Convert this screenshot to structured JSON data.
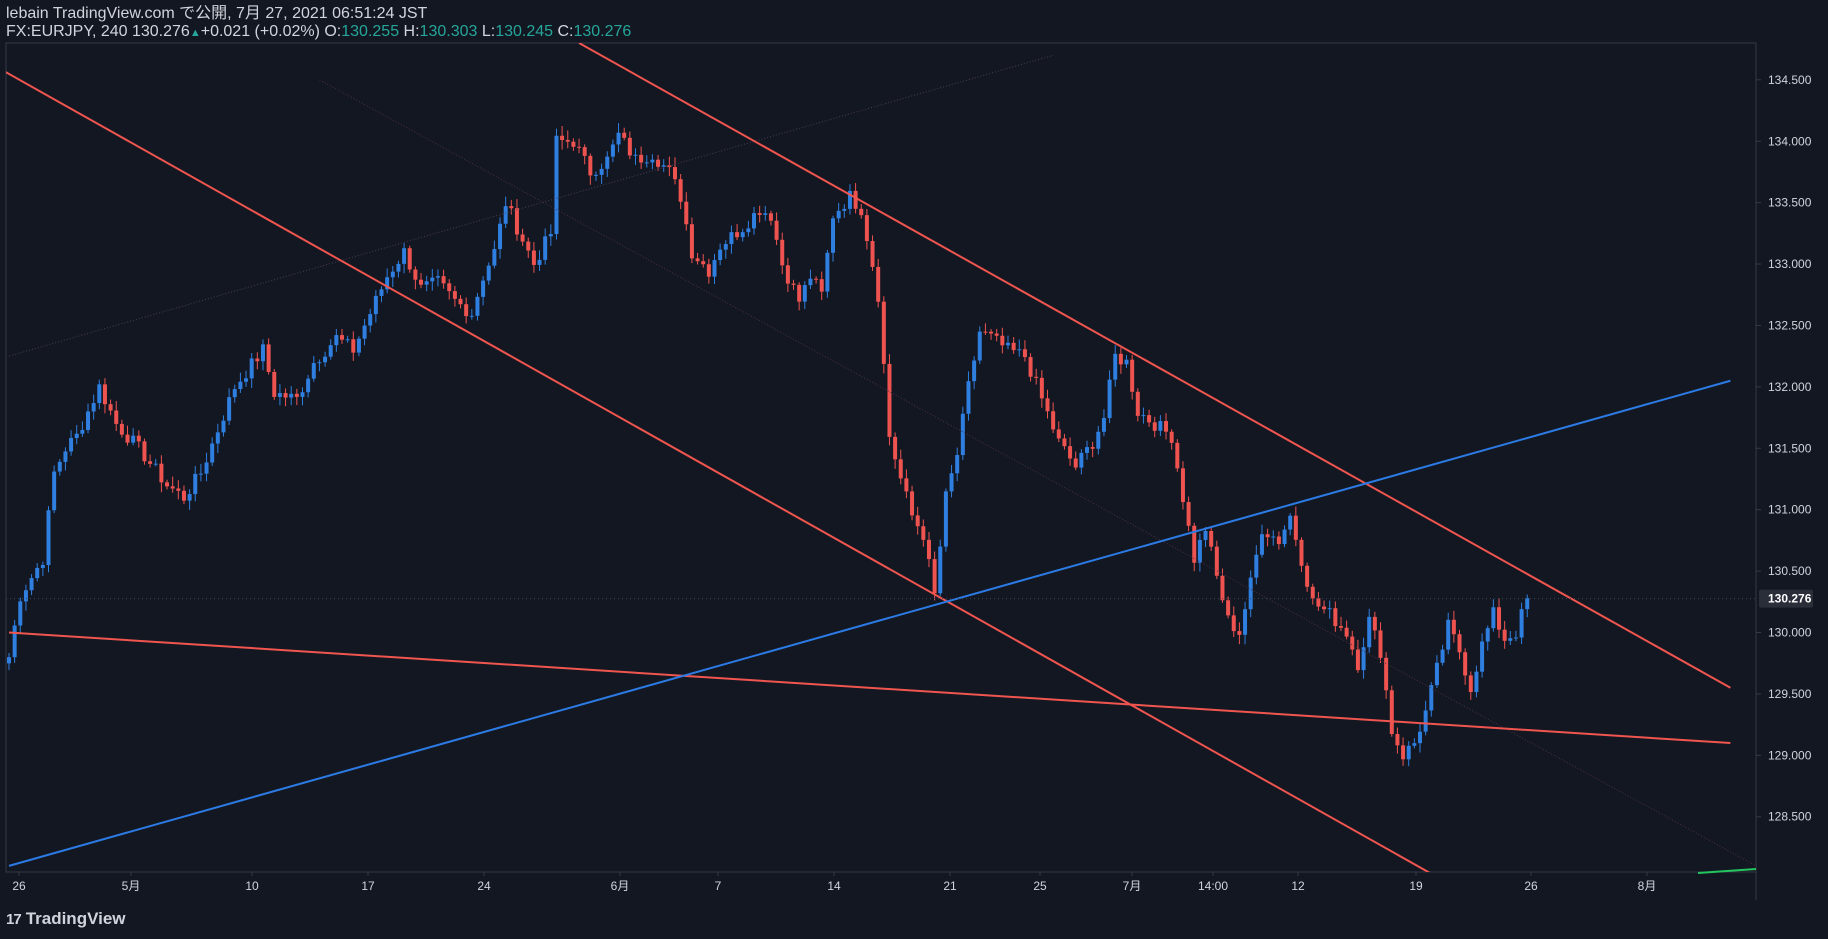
{
  "header": {
    "publish_line": "lebain TradingView.com で公開, 7月 27, 2021 06:51:24 JST",
    "symbol_prefix": "FX:EURJPY, 240 130.276",
    "change_arrow": "▲",
    "change_text": "+0.021 (+0.02%) O:",
    "open": "130.255",
    "h_label": "H:",
    "high": "130.303",
    "l_label": "L:",
    "low": "130.245",
    "c_label": "C:",
    "close": "130.276"
  },
  "footer": {
    "logo_mark": "17",
    "brand": "TradingView"
  },
  "colors": {
    "background": "#131722",
    "up": "#2f7fe0",
    "down": "#ef5350",
    "trend_red": "#f0554f",
    "trend_blue": "#2c7be5",
    "axis_text": "#d1d4dc",
    "grid_border": "#363a45",
    "green_stub": "#22c55e"
  },
  "chart_data": {
    "type": "candlestick",
    "symbol": "FX:EURJPY",
    "interval": "240",
    "ylim": [
      128.05,
      134.8
    ],
    "y_ticks": [
      "134.500",
      "134.000",
      "133.500",
      "133.000",
      "132.500",
      "132.000",
      "131.500",
      "131.000",
      "130.500",
      "130.000",
      "129.500",
      "129.000",
      "128.500"
    ],
    "x_ticks": [
      "26",
      "5月",
      "10",
      "17",
      "24",
      "6月",
      "7",
      "14",
      "21",
      "25",
      "7月",
      "14:00",
      "12",
      "19",
      "26",
      "8月"
    ],
    "last_price": "130.276",
    "anchors": [
      [
        0,
        129.8
      ],
      [
        2,
        130.3
      ],
      [
        4,
        130.45
      ],
      [
        6,
        130.6
      ],
      [
        8,
        131.3
      ],
      [
        10,
        131.5
      ],
      [
        12,
        131.6
      ],
      [
        16,
        132.0
      ],
      [
        19,
        131.7
      ],
      [
        23,
        131.5
      ],
      [
        28,
        131.2
      ],
      [
        31,
        131.1
      ],
      [
        34,
        131.3
      ],
      [
        40,
        132.0
      ],
      [
        45,
        132.3
      ],
      [
        47,
        131.95
      ],
      [
        51,
        131.9
      ],
      [
        54,
        132.2
      ],
      [
        58,
        132.4
      ],
      [
        61,
        132.3
      ],
      [
        63,
        132.5
      ],
      [
        67,
        132.9
      ],
      [
        70,
        133.1
      ],
      [
        73,
        132.8
      ],
      [
        76,
        132.85
      ],
      [
        79,
        132.7
      ],
      [
        82,
        132.6
      ],
      [
        84,
        132.9
      ],
      [
        86,
        133.1
      ],
      [
        88,
        133.5
      ],
      [
        90,
        133.3
      ],
      [
        93,
        133.0
      ],
      [
        96,
        133.25
      ],
      [
        97,
        134.0
      ],
      [
        100,
        134.0
      ],
      [
        103,
        133.75
      ],
      [
        106,
        133.85
      ],
      [
        108,
        134.05
      ],
      [
        111,
        133.85
      ],
      [
        114,
        133.9
      ],
      [
        117,
        133.75
      ],
      [
        119,
        133.55
      ],
      [
        121,
        133.1
      ],
      [
        124,
        132.95
      ],
      [
        126,
        133.15
      ],
      [
        130,
        133.3
      ],
      [
        133,
        133.45
      ],
      [
        135,
        133.4
      ],
      [
        137,
        133.0
      ],
      [
        140,
        132.7
      ],
      [
        142,
        132.9
      ],
      [
        144,
        132.75
      ],
      [
        146,
        133.4
      ],
      [
        149,
        133.55
      ],
      [
        151,
        133.45
      ],
      [
        153,
        133.0
      ],
      [
        154,
        132.75
      ],
      [
        156,
        131.6
      ],
      [
        158,
        131.25
      ],
      [
        160,
        130.95
      ],
      [
        162,
        130.8
      ],
      [
        164,
        130.3
      ],
      [
        166,
        131.1
      ],
      [
        168,
        131.45
      ],
      [
        170,
        132.0
      ],
      [
        172,
        132.45
      ],
      [
        174,
        132.4
      ],
      [
        177,
        132.3
      ],
      [
        180,
        132.25
      ],
      [
        183,
        131.9
      ],
      [
        186,
        131.55
      ],
      [
        189,
        131.35
      ],
      [
        192,
        131.55
      ],
      [
        194,
        131.75
      ],
      [
        196,
        132.25
      ],
      [
        198,
        132.2
      ],
      [
        200,
        131.8
      ],
      [
        203,
        131.7
      ],
      [
        206,
        131.6
      ],
      [
        208,
        131.1
      ],
      [
        210,
        130.6
      ],
      [
        212,
        130.85
      ],
      [
        214,
        130.45
      ],
      [
        216,
        130.1
      ],
      [
        218,
        130.0
      ],
      [
        220,
        130.4
      ],
      [
        222,
        130.85
      ],
      [
        225,
        130.75
      ],
      [
        227,
        130.95
      ],
      [
        229,
        130.6
      ],
      [
        231,
        130.25
      ],
      [
        234,
        130.15
      ],
      [
        237,
        130.0
      ],
      [
        239,
        129.75
      ],
      [
        241,
        130.1
      ],
      [
        243,
        129.85
      ],
      [
        245,
        129.2
      ],
      [
        247,
        129.0
      ],
      [
        249,
        129.1
      ],
      [
        251,
        129.35
      ],
      [
        253,
        129.7
      ],
      [
        255,
        130.05
      ],
      [
        257,
        129.85
      ],
      [
        259,
        129.55
      ],
      [
        261,
        129.9
      ],
      [
        263,
        130.15
      ],
      [
        265,
        129.95
      ],
      [
        267,
        130.0
      ],
      [
        269,
        130.28
      ]
    ],
    "trendlines": [
      {
        "color": "red",
        "points": [
          [
            -2,
            134.6
          ],
          [
            265,
            127.7
          ]
        ]
      },
      {
        "color": "red",
        "points": [
          [
            101,
            134.8
          ],
          [
            305,
            129.55
          ]
        ]
      },
      {
        "color": "red",
        "points": [
          [
            0,
            130.0
          ],
          [
            305,
            129.1
          ]
        ]
      },
      {
        "color": "blue",
        "points": [
          [
            0,
            128.1
          ],
          [
            305,
            132.05
          ]
        ]
      }
    ]
  }
}
